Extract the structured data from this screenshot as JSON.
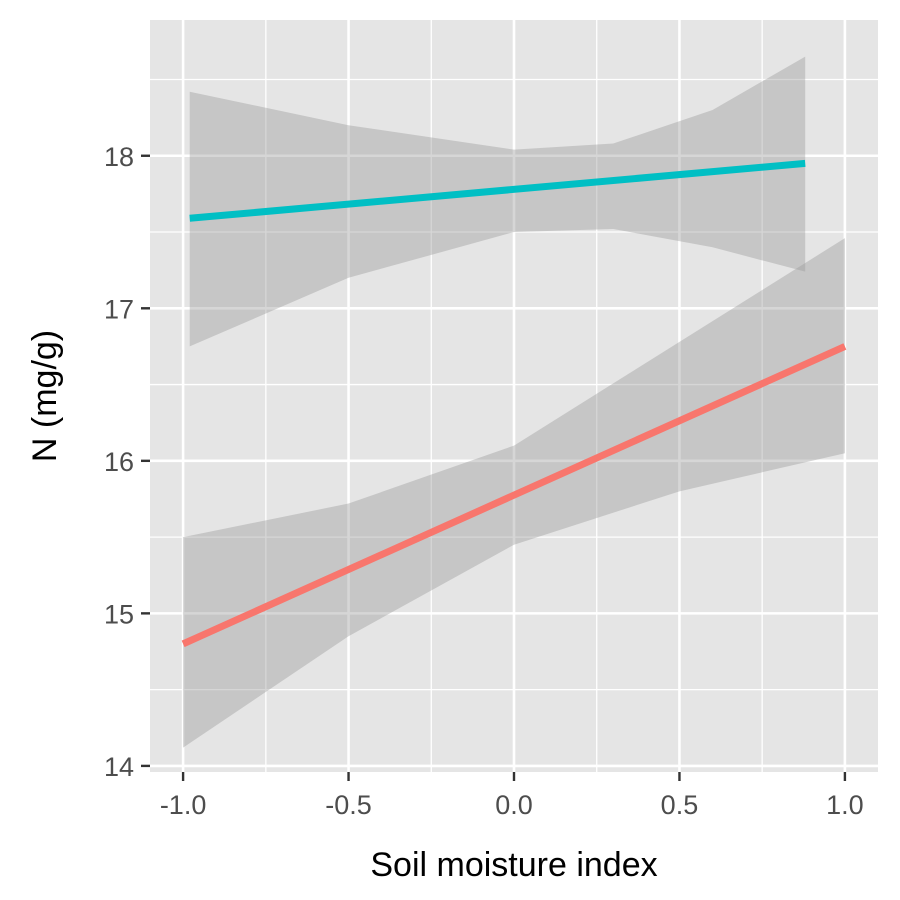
{
  "chart_data": {
    "type": "line",
    "title": "",
    "xlabel": "Soil moisture index",
    "ylabel": "N (mg/g)",
    "xlim": [
      -1.1,
      1.1
    ],
    "ylim": [
      13.96,
      18.89
    ],
    "x_ticks": [
      -1.0,
      -0.5,
      0.0,
      0.5,
      1.0
    ],
    "x_tick_labels": [
      "-1.0",
      "-0.5",
      "0.0",
      "0.5",
      "1.0"
    ],
    "y_ticks": [
      14,
      15,
      16,
      17,
      18
    ],
    "y_tick_labels": [
      "14",
      "15",
      "16",
      "17",
      "18"
    ],
    "grid": true,
    "legend": "none",
    "series": [
      {
        "color": "#F8766D",
        "x": [
          -1.0,
          1.0
        ],
        "y": [
          14.8,
          16.75
        ],
        "ci_x": [
          -1.0,
          -0.5,
          0.0,
          0.5,
          1.0
        ],
        "ci_lower": [
          14.12,
          14.85,
          15.45,
          15.8,
          16.05
        ],
        "ci_upper": [
          15.5,
          15.72,
          16.1,
          16.78,
          17.46
        ]
      },
      {
        "color": "#00BFC4",
        "x": [
          -0.98,
          0.88
        ],
        "y": [
          17.59,
          17.95
        ],
        "ci_x": [
          -0.98,
          -0.5,
          0.0,
          0.3,
          0.6,
          0.88
        ],
        "ci_lower": [
          16.75,
          17.2,
          17.5,
          17.52,
          17.4,
          17.24
        ],
        "ci_upper": [
          18.42,
          18.2,
          18.04,
          18.08,
          18.3,
          18.65
        ]
      }
    ],
    "band_color": "#999999",
    "panel_bg": "#E5E5E5",
    "grid_color": "#FFFFFF"
  }
}
